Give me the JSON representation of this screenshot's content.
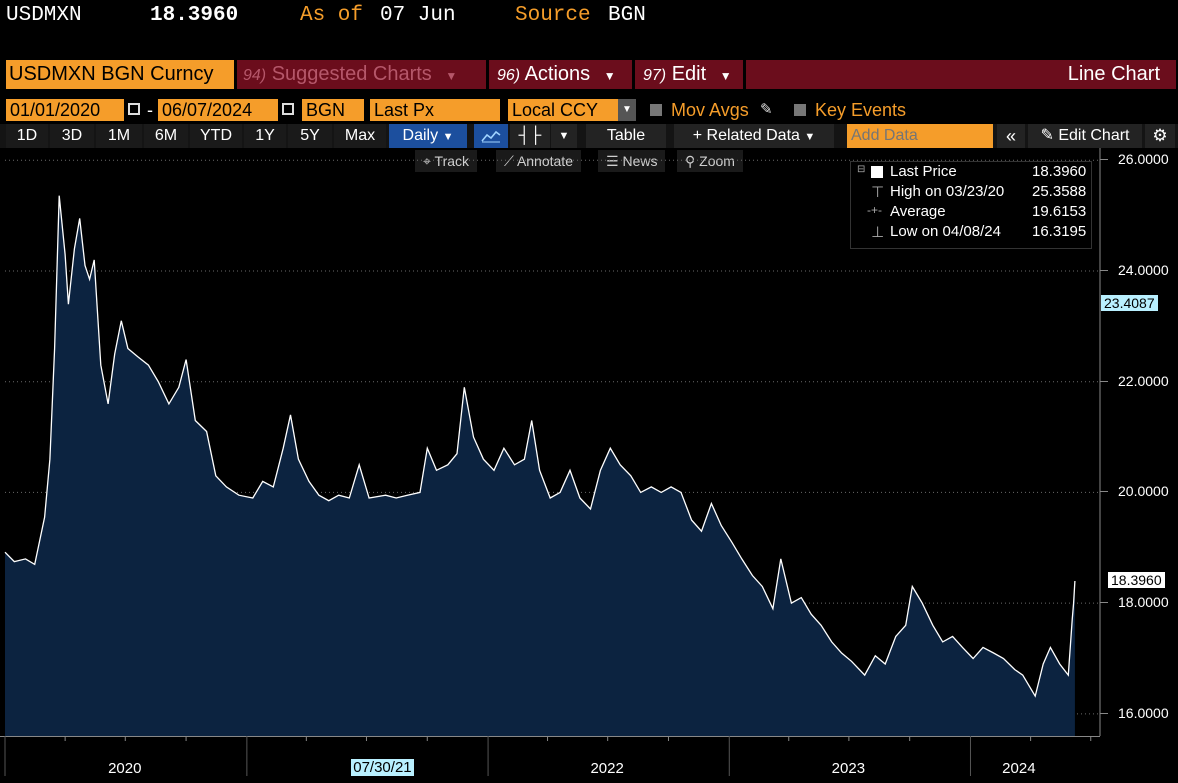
{
  "header": {
    "ticker": "USDMXN",
    "price": "18.3960",
    "as_of_label": "As of",
    "as_of_date": "07 Jun",
    "source_label": "Source",
    "source": "BGN"
  },
  "menu": {
    "security": "USDMXN BGN Curncy",
    "suggested_fn": "94)",
    "suggested": "Suggested Charts",
    "actions_fn": "96)",
    "actions": "Actions",
    "edit_fn": "97)",
    "edit": "Edit",
    "chart_type": "Line Chart"
  },
  "settings": {
    "start_date": "01/01/2020",
    "dash": "-",
    "end_date": "06/07/2024",
    "pricing_source": "BGN",
    "field": "Last Px",
    "currency": "Local CCY",
    "mov_avgs": "Mov Avgs",
    "key_events": "Key Events"
  },
  "toolbar": {
    "ranges": [
      "1D",
      "3D",
      "1M",
      "6M",
      "YTD",
      "1Y",
      "5Y",
      "Max"
    ],
    "frequency": "Daily",
    "table": "Table",
    "related_data": "+ Related Data",
    "add_data_placeholder": "Add Data",
    "collapse": "«",
    "edit_chart": "Edit Chart"
  },
  "chart_tools": {
    "track": "Track",
    "annotate": "Annotate",
    "news": "News",
    "zoom": "Zoom"
  },
  "legend": {
    "last_label": "Last Price",
    "last_value": "18.3960",
    "high_label": "High on 03/23/20",
    "high_value": "25.3588",
    "avg_label": "Average",
    "avg_value": "19.6153",
    "low_label": "Low on 04/08/24",
    "low_value": "16.3195"
  },
  "chart_data": {
    "type": "area",
    "title": "",
    "series": [
      {
        "name": "Last Price",
        "points": [
          [
            "2020-01-01",
            18.92
          ],
          [
            "2020-01-15",
            18.75
          ],
          [
            "2020-02-01",
            18.8
          ],
          [
            "2020-02-15",
            18.7
          ],
          [
            "2020-03-01",
            19.55
          ],
          [
            "2020-03-09",
            20.6
          ],
          [
            "2020-03-16",
            22.6
          ],
          [
            "2020-03-23",
            25.36
          ],
          [
            "2020-04-01",
            24.3
          ],
          [
            "2020-04-06",
            23.4
          ],
          [
            "2020-04-15",
            24.4
          ],
          [
            "2020-04-23",
            24.95
          ],
          [
            "2020-05-01",
            24.1
          ],
          [
            "2020-05-08",
            23.85
          ],
          [
            "2020-05-15",
            24.2
          ],
          [
            "2020-05-25",
            22.3
          ],
          [
            "2020-06-05",
            21.6
          ],
          [
            "2020-06-15",
            22.5
          ],
          [
            "2020-06-25",
            23.1
          ],
          [
            "2020-07-05",
            22.6
          ],
          [
            "2020-07-20",
            22.45
          ],
          [
            "2020-08-05",
            22.3
          ],
          [
            "2020-08-20",
            22.0
          ],
          [
            "2020-09-05",
            21.6
          ],
          [
            "2020-09-20",
            21.9
          ],
          [
            "2020-10-01",
            22.4
          ],
          [
            "2020-10-15",
            21.3
          ],
          [
            "2020-11-01",
            21.1
          ],
          [
            "2020-11-15",
            20.3
          ],
          [
            "2020-12-01",
            20.1
          ],
          [
            "2020-12-20",
            19.95
          ],
          [
            "2021-01-10",
            19.9
          ],
          [
            "2021-01-25",
            20.2
          ],
          [
            "2021-02-10",
            20.1
          ],
          [
            "2021-02-25",
            20.8
          ],
          [
            "2021-03-08",
            21.4
          ],
          [
            "2021-03-20",
            20.6
          ],
          [
            "2021-04-05",
            20.2
          ],
          [
            "2021-04-20",
            19.95
          ],
          [
            "2021-05-05",
            19.85
          ],
          [
            "2021-05-20",
            19.95
          ],
          [
            "2021-06-05",
            19.9
          ],
          [
            "2021-06-20",
            20.5
          ],
          [
            "2021-07-05",
            19.9
          ],
          [
            "2021-07-30",
            19.95
          ],
          [
            "2021-08-15",
            19.9
          ],
          [
            "2021-09-01",
            19.95
          ],
          [
            "2021-09-20",
            20.0
          ],
          [
            "2021-10-01",
            20.8
          ],
          [
            "2021-10-15",
            20.4
          ],
          [
            "2021-11-01",
            20.5
          ],
          [
            "2021-11-15",
            20.7
          ],
          [
            "2021-11-26",
            21.9
          ],
          [
            "2021-12-10",
            21.0
          ],
          [
            "2021-12-25",
            20.6
          ],
          [
            "2022-01-10",
            20.4
          ],
          [
            "2022-01-25",
            20.8
          ],
          [
            "2022-02-10",
            20.5
          ],
          [
            "2022-02-25",
            20.6
          ],
          [
            "2022-03-08",
            21.3
          ],
          [
            "2022-03-20",
            20.4
          ],
          [
            "2022-04-05",
            19.9
          ],
          [
            "2022-04-20",
            20.0
          ],
          [
            "2022-05-05",
            20.4
          ],
          [
            "2022-05-20",
            19.9
          ],
          [
            "2022-06-05",
            19.7
          ],
          [
            "2022-06-20",
            20.4
          ],
          [
            "2022-07-05",
            20.8
          ],
          [
            "2022-07-20",
            20.5
          ],
          [
            "2022-08-05",
            20.3
          ],
          [
            "2022-08-20",
            20.0
          ],
          [
            "2022-09-05",
            20.1
          ],
          [
            "2022-09-20",
            20.0
          ],
          [
            "2022-10-05",
            20.1
          ],
          [
            "2022-10-20",
            20.0
          ],
          [
            "2022-11-05",
            19.5
          ],
          [
            "2022-11-20",
            19.3
          ],
          [
            "2022-12-05",
            19.8
          ],
          [
            "2022-12-20",
            19.4
          ],
          [
            "2023-01-05",
            19.1
          ],
          [
            "2023-01-20",
            18.8
          ],
          [
            "2023-02-05",
            18.5
          ],
          [
            "2023-02-20",
            18.3
          ],
          [
            "2023-03-08",
            17.9
          ],
          [
            "2023-03-20",
            18.8
          ],
          [
            "2023-04-05",
            18.0
          ],
          [
            "2023-04-20",
            18.1
          ],
          [
            "2023-05-05",
            17.8
          ],
          [
            "2023-05-20",
            17.6
          ],
          [
            "2023-06-05",
            17.3
          ],
          [
            "2023-06-20",
            17.1
          ],
          [
            "2023-07-05",
            16.95
          ],
          [
            "2023-07-25",
            16.7
          ],
          [
            "2023-08-10",
            17.05
          ],
          [
            "2023-08-25",
            16.9
          ],
          [
            "2023-09-10",
            17.4
          ],
          [
            "2023-09-25",
            17.6
          ],
          [
            "2023-10-05",
            18.3
          ],
          [
            "2023-10-20",
            18.0
          ],
          [
            "2023-11-05",
            17.6
          ],
          [
            "2023-11-20",
            17.3
          ],
          [
            "2023-12-05",
            17.4
          ],
          [
            "2023-12-20",
            17.2
          ],
          [
            "2024-01-05",
            17.0
          ],
          [
            "2024-01-20",
            17.2
          ],
          [
            "2024-02-05",
            17.1
          ],
          [
            "2024-02-20",
            17.0
          ],
          [
            "2024-03-08",
            16.8
          ],
          [
            "2024-03-20",
            16.7
          ],
          [
            "2024-04-08",
            16.32
          ],
          [
            "2024-04-20",
            16.9
          ],
          [
            "2024-05-01",
            17.2
          ],
          [
            "2024-05-15",
            16.9
          ],
          [
            "2024-05-28",
            16.7
          ],
          [
            "2024-06-03",
            17.7
          ],
          [
            "2024-06-05",
            18.0
          ],
          [
            "2024-06-07",
            18.4
          ]
        ]
      }
    ],
    "ylim": [
      15.6,
      26.15
    ],
    "y_ticks": [
      "26.0000",
      "24.0000",
      "22.0000",
      "20.0000",
      "18.0000",
      "16.0000"
    ],
    "y_tick_values": [
      26,
      24,
      22,
      20,
      18,
      16
    ],
    "y_markers": [
      {
        "label": "23.4087",
        "value": 23.4087,
        "color": "#b9f0ff"
      },
      {
        "label": "18.3960",
        "value": 18.396,
        "color": "#ffffff"
      }
    ],
    "x_labels": [
      {
        "label": "2020",
        "date": "2020-07-01"
      },
      {
        "label": "07/30/21",
        "date": "2021-07-30"
      },
      {
        "label": "2022",
        "date": "2022-07-01"
      },
      {
        "label": "2023",
        "date": "2023-07-01"
      },
      {
        "label": "2024",
        "date": "2024-03-15"
      }
    ],
    "x_range": [
      "2020-01-01",
      "2024-07-15"
    ],
    "fill_color": "#0c2340",
    "line_color": "#ffffff",
    "grid": true
  }
}
